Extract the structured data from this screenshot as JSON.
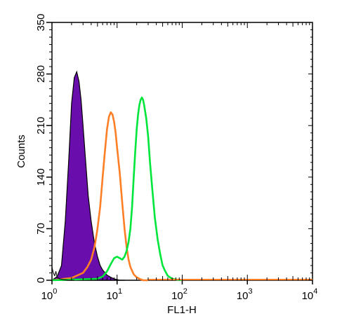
{
  "chart_data": {
    "type": "area",
    "xlabel": "FL1-H",
    "ylabel": "Counts",
    "xscale": "log",
    "xlim": [
      1,
      10000
    ],
    "ylim": [
      0,
      350
    ],
    "x_ticks": [
      {
        "base": "10",
        "exp": "0",
        "value": 1
      },
      {
        "base": "10",
        "exp": "1",
        "value": 10
      },
      {
        "base": "10",
        "exp": "2",
        "value": 100
      },
      {
        "base": "10",
        "exp": "3",
        "value": 1000
      },
      {
        "base": "10",
        "exp": "4",
        "value": 10000
      }
    ],
    "y_ticks": [
      {
        "label": "0",
        "value": 0
      },
      {
        "label": "70",
        "value": 70
      },
      {
        "label": "140",
        "value": 140
      },
      {
        "label": "210",
        "value": 210
      },
      {
        "label": "280",
        "value": 280
      },
      {
        "label": "350",
        "value": 350
      }
    ],
    "series": [
      {
        "style": "filled",
        "color": "#6a0dad",
        "x": [
          1,
          1.2,
          1.4,
          1.6,
          1.8,
          2.0,
          2.2,
          2.4,
          2.6,
          2.8,
          3.0,
          3.3,
          3.6,
          4.0,
          4.5,
          5.0,
          5.5,
          6.0,
          7.0,
          8.0,
          9.0,
          10,
          11,
          12,
          13
        ],
        "y": [
          0,
          5,
          20,
          80,
          160,
          240,
          275,
          283,
          270,
          245,
          210,
          160,
          115,
          80,
          50,
          32,
          20,
          14,
          7,
          4,
          2,
          1,
          0,
          0,
          0
        ]
      },
      {
        "style": "line",
        "color": "#ff7f27",
        "x": [
          1,
          2,
          3,
          3.5,
          4,
          4.5,
          5,
          5.5,
          6,
          6.5,
          7,
          7.5,
          8,
          8.5,
          9,
          9.5,
          10,
          11,
          12,
          13,
          14,
          15,
          16,
          18,
          20,
          22,
          25,
          30
        ],
        "y": [
          0,
          3,
          10,
          18,
          28,
          45,
          70,
          100,
          140,
          175,
          205,
          222,
          228,
          225,
          215,
          200,
          180,
          145,
          105,
          70,
          45,
          28,
          18,
          8,
          4,
          2,
          0,
          0
        ]
      },
      {
        "style": "line",
        "color": "#00e63a",
        "x": [
          1,
          5,
          6,
          7,
          8,
          9,
          10,
          11,
          12,
          13,
          14,
          15,
          16,
          17,
          18,
          19,
          20,
          21,
          22,
          23,
          24,
          25,
          26,
          28,
          30,
          32,
          35,
          38,
          42,
          46,
          50,
          55,
          60,
          70,
          80,
          100
        ],
        "y": [
          0,
          2,
          5,
          12,
          22,
          30,
          32,
          30,
          28,
          32,
          40,
          52,
          70,
          100,
          140,
          175,
          205,
          225,
          238,
          245,
          248,
          245,
          238,
          220,
          195,
          160,
          120,
          85,
          55,
          35,
          20,
          12,
          6,
          2,
          1,
          0
        ]
      },
      {
        "style": "line",
        "color": "#000000",
        "x": [
          1,
          1.05,
          1.1,
          1.15,
          1.2,
          1.3,
          1.5,
          1.8,
          2.2
        ],
        "y": [
          18,
          10,
          6,
          12,
          4,
          2,
          1,
          0,
          0
        ]
      }
    ]
  }
}
